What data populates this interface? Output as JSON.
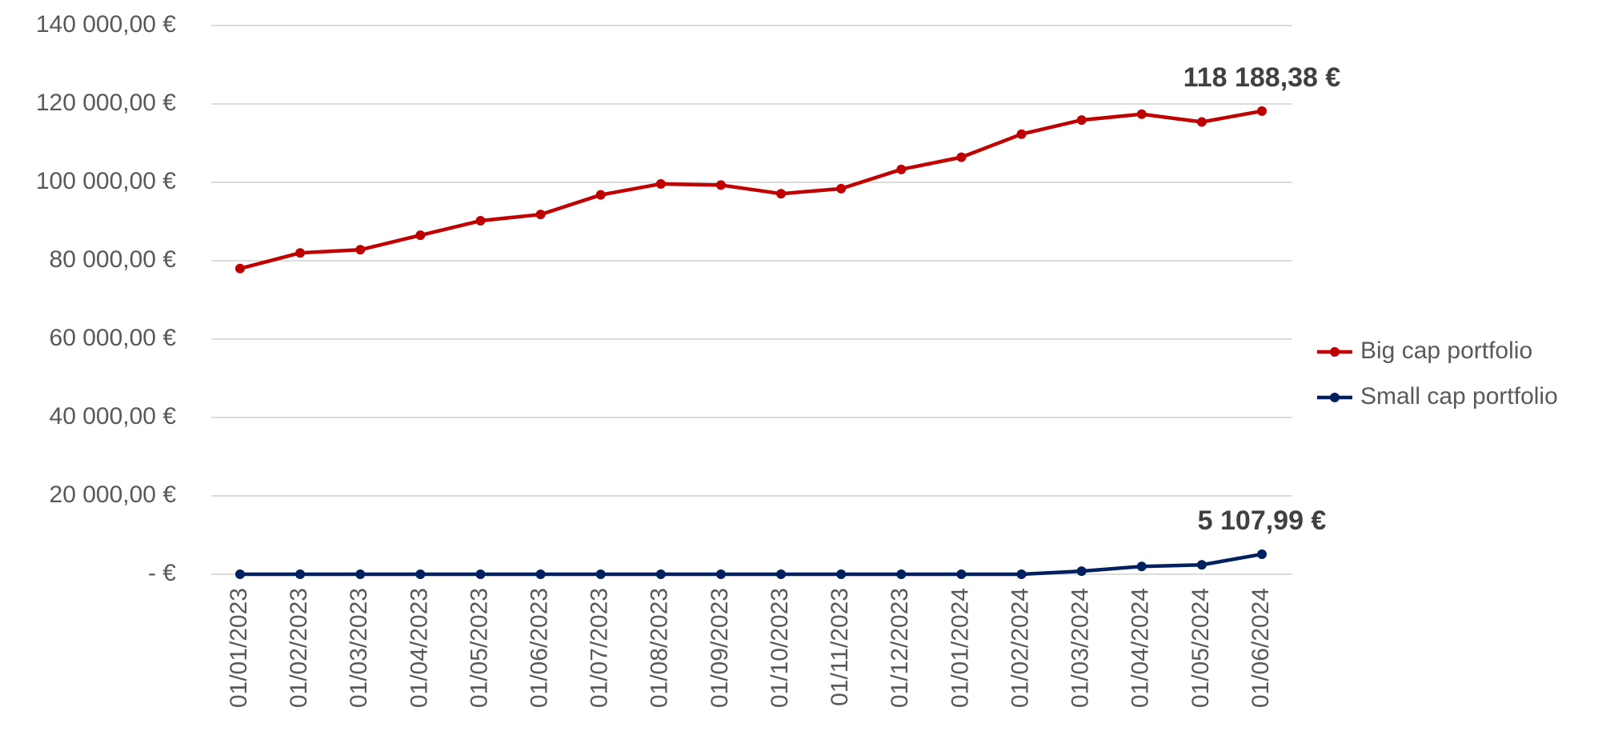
{
  "chart_data": {
    "type": "line",
    "categories": [
      "01/01/2023",
      "01/02/2023",
      "01/03/2023",
      "01/04/2023",
      "01/05/2023",
      "01/06/2023",
      "01/07/2023",
      "01/08/2023",
      "01/09/2023",
      "01/10/2023",
      "01/11/2023",
      "01/12/2023",
      "01/01/2024",
      "01/02/2024",
      "01/03/2024",
      "01/04/2024",
      "01/05/2024",
      "01/06/2024"
    ],
    "series": [
      {
        "name": "Big cap portfolio",
        "color": "#c00000",
        "values": [
          78000,
          82000,
          82800,
          86500,
          90200,
          91800,
          96800,
          99600,
          99300,
          97100,
          98400,
          103300,
          106400,
          112300,
          115900,
          117400,
          115400,
          118188.38
        ],
        "value_labels": [
          null,
          null,
          null,
          null,
          null,
          null,
          null,
          null,
          null,
          null,
          null,
          null,
          null,
          null,
          null,
          null,
          null,
          "118 188,38 €"
        ]
      },
      {
        "name": "Small cap portfolio",
        "color": "#002060",
        "values": [
          0,
          0,
          0,
          0,
          0,
          0,
          0,
          0,
          0,
          0,
          0,
          0,
          0,
          0,
          800,
          2000,
          2400,
          5107.99
        ],
        "value_labels": [
          null,
          null,
          null,
          null,
          null,
          null,
          null,
          null,
          null,
          null,
          null,
          null,
          null,
          null,
          null,
          null,
          null,
          "5 107,99 €"
        ]
      }
    ],
    "ylim": [
      0,
      140000
    ],
    "yticks": [
      {
        "value": 0,
        "label": "-  €"
      },
      {
        "value": 20000,
        "label": "20 000,00 €"
      },
      {
        "value": 40000,
        "label": "40 000,00 €"
      },
      {
        "value": 60000,
        "label": "60 000,00 €"
      },
      {
        "value": 80000,
        "label": "80 000,00 €"
      },
      {
        "value": 100000,
        "label": "100 000,00 €"
      },
      {
        "value": 120000,
        "label": "120 000,00 €"
      },
      {
        "value": 140000,
        "label": "140 000,00 €"
      }
    ],
    "grid": true,
    "legend": "right"
  }
}
